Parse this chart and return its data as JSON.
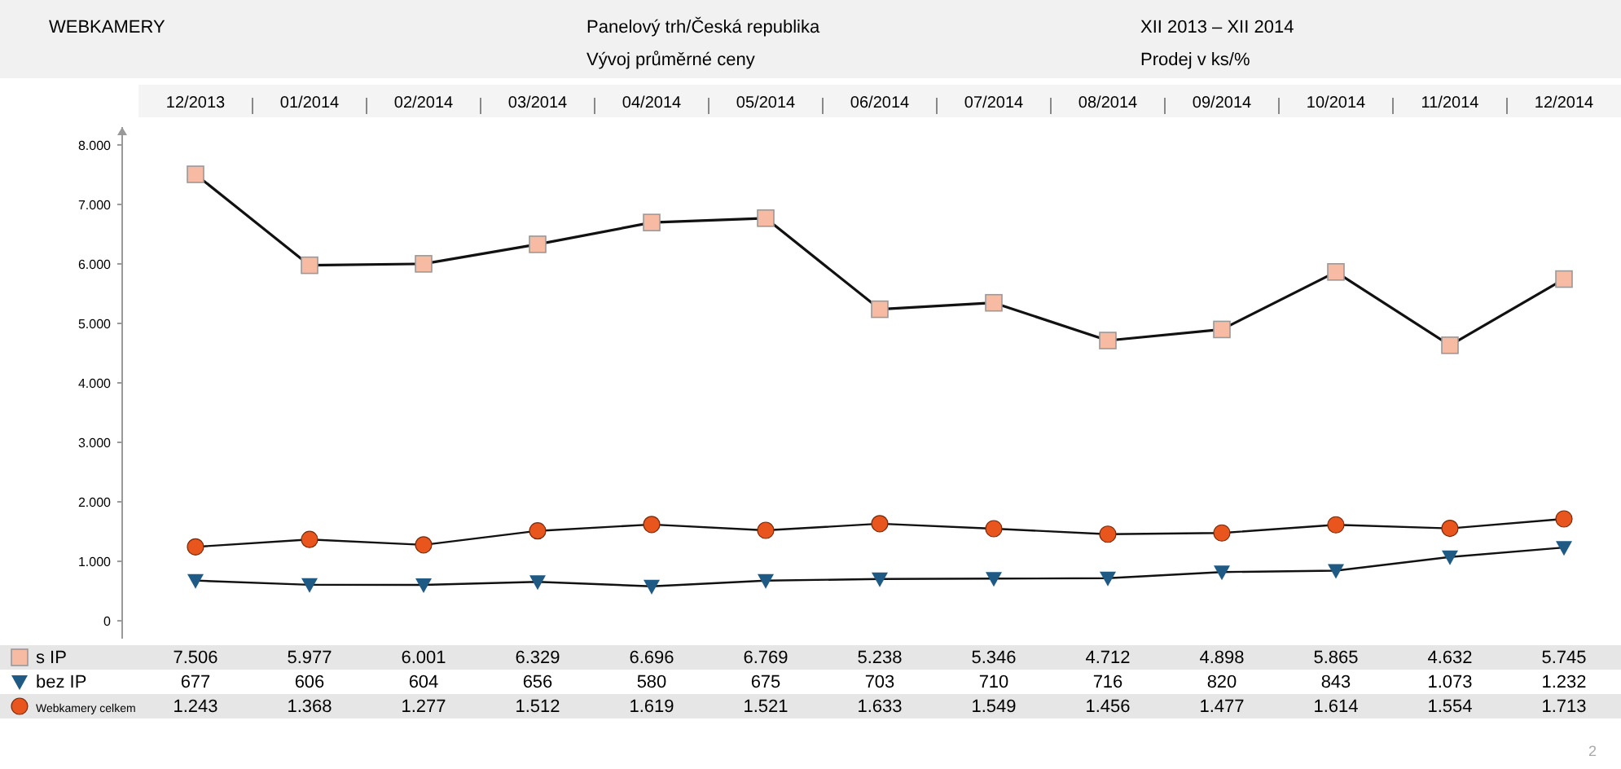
{
  "chart_data": {
    "type": "line",
    "title": "WEBKAMERY",
    "subtitle": "Panelový trh/Česká republika",
    "annotations": [
      "Vývoj průměrné ceny",
      "XII 2013 – XII 2014",
      "Prodej v ks/%",
      "2"
    ],
    "categories": [
      "12/2013",
      "01/2014",
      "02/2014",
      "03/2014",
      "04/2014",
      "05/2014",
      "06/2014",
      "07/2014",
      "08/2014",
      "09/2014",
      "10/2014",
      "11/2014",
      "12/2014"
    ],
    "series": [
      {
        "name": "s IP",
        "color": "#f7bba3",
        "marker": "square",
        "values": [
          7506,
          5977,
          6001,
          6329,
          6696,
          6769,
          5238,
          5346,
          4712,
          4898,
          5865,
          4632,
          5745
        ],
        "value_labels": [
          "7.506",
          "5.977",
          "6.001",
          "6.329",
          "6.696",
          "6.769",
          "5.238",
          "5.346",
          "4.712",
          "4.898",
          "5.865",
          "4.632",
          "5.745"
        ]
      },
      {
        "name": "bez IP",
        "color": "#1f5a85",
        "marker": "triangle",
        "values": [
          677,
          606,
          604,
          656,
          580,
          675,
          703,
          710,
          716,
          820,
          843,
          1073,
          1232
        ],
        "value_labels": [
          "677",
          "606",
          "604",
          "656",
          "580",
          "675",
          "703",
          "710",
          "716",
          "820",
          "843",
          "1.073",
          "1.232"
        ]
      },
      {
        "name": "Webkamery celkem",
        "color": "#e8561e",
        "marker": "circle",
        "values": [
          1243,
          1368,
          1277,
          1512,
          1619,
          1521,
          1633,
          1549,
          1456,
          1477,
          1614,
          1554,
          1713
        ],
        "value_labels": [
          "1.243",
          "1.368",
          "1.277",
          "1.512",
          "1.619",
          "1.521",
          "1.633",
          "1.549",
          "1.456",
          "1.477",
          "1.614",
          "1.554",
          "1.713"
        ]
      }
    ],
    "ylim": [
      -300,
      8300
    ],
    "yticks": [
      {
        "value": 0,
        "label": "0"
      },
      {
        "value": 1000,
        "label": "1.000"
      },
      {
        "value": 2000,
        "label": "2.000"
      },
      {
        "value": 3000,
        "label": "3.000"
      },
      {
        "value": 4000,
        "label": "4.000"
      },
      {
        "value": 5000,
        "label": "5.000"
      },
      {
        "value": 6000,
        "label": "6.000"
      },
      {
        "value": 7000,
        "label": "7.000"
      },
      {
        "value": 8000,
        "label": "8.000"
      }
    ],
    "legend": "bottom",
    "line_style": "solid"
  }
}
